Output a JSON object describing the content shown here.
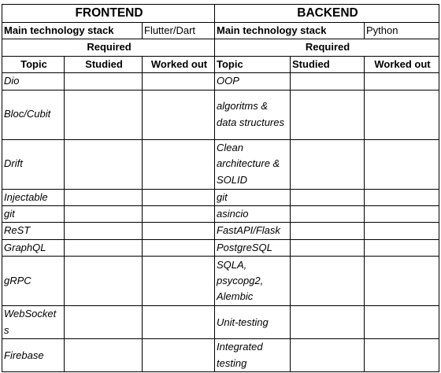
{
  "frontend": {
    "title": "FRONTEND",
    "stack_label": "Main technology stack",
    "stack_value": "Flutter/Dart",
    "required": "Required",
    "col_topic": "Topic",
    "col_studied": "Studied",
    "col_worked": "Worked out",
    "topics": [
      "Dio",
      "Bloc/Cubit",
      "Drift",
      "Injectable",
      "git",
      "ReST",
      "GraphQL",
      "gRPC",
      "WebSocket s",
      "Firebase"
    ]
  },
  "backend": {
    "title": "BACKEND",
    "stack_label": "Main technology stack",
    "stack_value": "Python",
    "required": "Required",
    "col_topic": "Topic",
    "col_studied": "Studied",
    "col_worked": "Worked out",
    "topics": [
      "OOP",
      "algoritms & data structures",
      "Clean architecture & SOLID",
      "git",
      "asincio",
      "FastAPI/Flask",
      "PostgreSQL",
      "SQLA, psycopg2, Alembic",
      "Unit-testing",
      "Integrated testing"
    ]
  }
}
